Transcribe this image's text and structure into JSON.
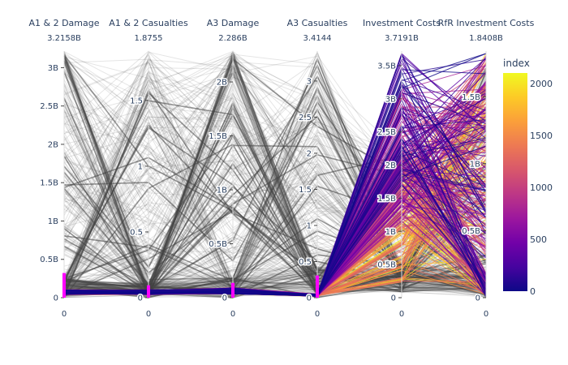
{
  "chart_data": {
    "type": "parallel_coordinates",
    "colorscale_name": "Plasma",
    "colorbar": {
      "title": "index",
      "range": [
        0,
        2100
      ],
      "ticks": [
        0,
        500,
        1000,
        1500,
        2000
      ],
      "colors": [
        "#0d0887",
        "#46039f",
        "#7201a8",
        "#9c179e",
        "#bd3786",
        "#d8576b",
        "#ed7953",
        "#fb9f3a",
        "#fdca26",
        "#f0f921"
      ]
    },
    "context_line_color": "#444444",
    "dimensions": [
      {
        "label": "A1 & 2 Damage",
        "range_label": "3.2158B",
        "max": 3.2158,
        "ticks": [
          {
            "v": 0,
            "t": "0"
          },
          {
            "v": 0.5,
            "t": "0.5B"
          },
          {
            "v": 1,
            "t": "1B"
          },
          {
            "v": 1.5,
            "t": "1.5B"
          },
          {
            "v": 2,
            "t": "2B"
          },
          {
            "v": 2.5,
            "t": "2.5B"
          },
          {
            "v": 3,
            "t": "3B"
          }
        ],
        "bottom_label": "0",
        "brush": [
          0,
          0.1
        ]
      },
      {
        "label": "A1 & 2 Casualties",
        "range_label": "1.8755",
        "max": 1.8755,
        "ticks": [
          {
            "v": 0,
            "t": "0"
          },
          {
            "v": 0.5,
            "t": "0.5"
          },
          {
            "v": 1,
            "t": "1"
          },
          {
            "v": 1.5,
            "t": "1.5"
          }
        ],
        "bottom_label": "0",
        "brush": [
          0,
          0.05
        ]
      },
      {
        "label": "A3 Damage",
        "range_label": "2.286B",
        "max": 2.286,
        "ticks": [
          {
            "v": 0,
            "t": "0"
          },
          {
            "v": 0.5,
            "t": "0.5B"
          },
          {
            "v": 1,
            "t": "1B"
          },
          {
            "v": 1.5,
            "t": "1.5B"
          },
          {
            "v": 2,
            "t": "2B"
          }
        ],
        "bottom_label": "0",
        "brush": [
          0,
          0.06
        ]
      },
      {
        "label": "A3 Casualties",
        "range_label": "3.4144",
        "max": 3.4144,
        "ticks": [
          {
            "v": 0,
            "t": "0"
          },
          {
            "v": 0.5,
            "t": "0.5"
          },
          {
            "v": 1,
            "t": "1"
          },
          {
            "v": 1.5,
            "t": "1.5"
          },
          {
            "v": 2,
            "t": "2"
          },
          {
            "v": 2.5,
            "t": "2.5"
          },
          {
            "v": 3,
            "t": "3"
          }
        ],
        "bottom_label": "0",
        "brush": [
          0,
          0.09
        ]
      },
      {
        "label": "Investment Costs",
        "range_label": "3.7191B",
        "max": 3.7191,
        "ticks": [
          {
            "v": 0,
            "t": "0"
          },
          {
            "v": 0.5,
            "t": "0.5B"
          },
          {
            "v": 1,
            "t": "1B"
          },
          {
            "v": 1.5,
            "t": "1.5B"
          },
          {
            "v": 2,
            "t": "2B"
          },
          {
            "v": 2.5,
            "t": "2.5B"
          },
          {
            "v": 3,
            "t": "3B"
          },
          {
            "v": 3.5,
            "t": "3.5B"
          }
        ],
        "bottom_label": "0",
        "brush": null
      },
      {
        "label": "RfR Investment Costs",
        "range_label": "1.8408B",
        "max": 1.8408,
        "ticks": [
          {
            "v": 0,
            "t": "0"
          },
          {
            "v": 0.5,
            "t": "0.5B"
          },
          {
            "v": 1,
            "t": "1B"
          },
          {
            "v": 1.5,
            "t": "1.5B"
          }
        ],
        "bottom_label": "0",
        "brush": null
      }
    ]
  }
}
